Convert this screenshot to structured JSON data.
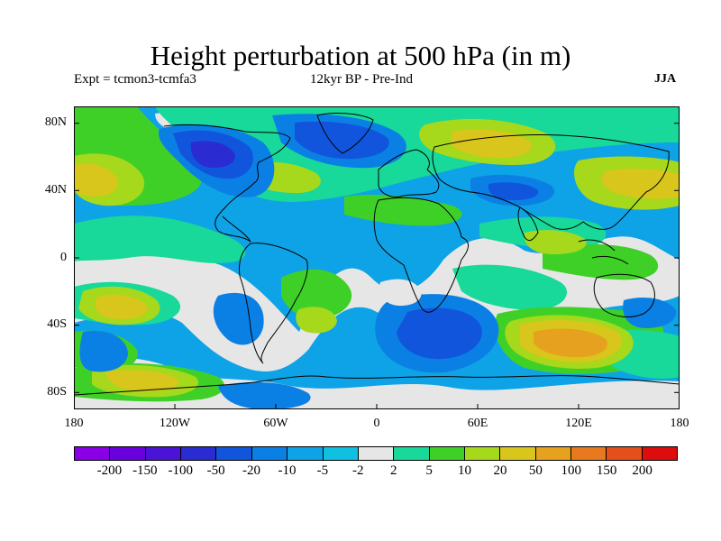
{
  "title": "Height perturbation at 500 hPa (in m)",
  "expt": "Expt = tcmon3-tcmfa3",
  "period": "12kyr BP - Pre-Ind",
  "season": "JJA",
  "lat_labels": [
    "80N",
    "40N",
    "0",
    "40S",
    "80S"
  ],
  "lon_labels": [
    "180",
    "120W",
    "60W",
    "0",
    "60E",
    "120E",
    "180"
  ],
  "colorbar": {
    "colors": [
      "#8a00e6",
      "#6a00dd",
      "#4b13d6",
      "#2a2bd0",
      "#1155dc",
      "#0b80e4",
      "#0ea3e6",
      "#10c0e0",
      "#e6e6e6",
      "#18d89a",
      "#3fd028",
      "#a6d81c",
      "#d9c61c",
      "#e6a21e",
      "#e77a1e",
      "#e4501c",
      "#dd0d0d"
    ],
    "labels": [
      "-200",
      "-150",
      "-100",
      "-50",
      "-20",
      "-10",
      "-5",
      "-2",
      "2",
      "5",
      "10",
      "20",
      "50",
      "100",
      "150",
      "200"
    ]
  }
}
